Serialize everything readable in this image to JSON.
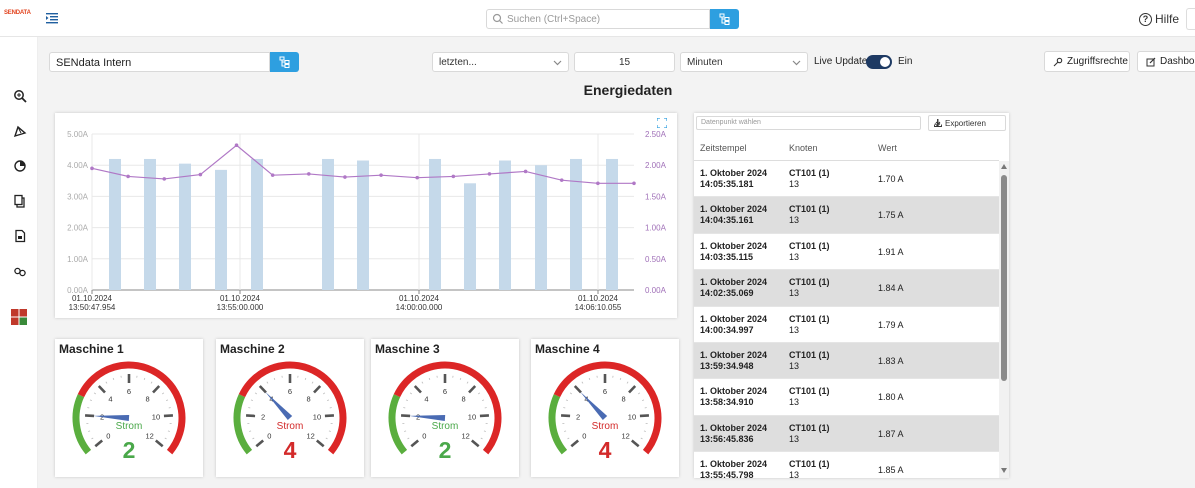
{
  "app": {
    "logo_text": "SENDATA"
  },
  "header": {
    "search_placeholder": "Suchen (Ctrl+Space)",
    "help_label": "Hilfe"
  },
  "sidebar": {
    "icons": [
      "zoom-search-icon",
      "rocket-icon",
      "pie-chart-icon",
      "copy-icon",
      "document-icon",
      "link-icon",
      "grid-app-icon"
    ]
  },
  "toolbar": {
    "node_value": "SENdata Intern",
    "range_select": "letzten...",
    "range_value": "15",
    "unit_select": "Minuten",
    "live_update_label": "Live Update",
    "live_update_state": "Ein",
    "access_button": "Zugriffsrechte",
    "dashboard_button": "Dashboard"
  },
  "page": {
    "title": "Energiedaten"
  },
  "chart_data": {
    "type": "bar",
    "title": "",
    "y_left": {
      "ticks": [
        "5.00A",
        "4.00A",
        "3.00A",
        "2.00A",
        "1.00A",
        "0.00A"
      ],
      "ylim": [
        0,
        5
      ]
    },
    "y_right": {
      "ticks": [
        "2.50A",
        "2.00A",
        "1.50A",
        "1.00A",
        "0.50A",
        "0.00A"
      ],
      "ylim": [
        0,
        2.5
      ]
    },
    "x_ticks": [
      {
        "date": "01.10.2024",
        "time": "13:50:47.954"
      },
      {
        "date": "01.10.2024",
        "time": "13:55:00.000"
      },
      {
        "date": "01.10.2024",
        "time": "14:00:00.000"
      },
      {
        "date": "01.10.2024",
        "time": "14:06:10.055"
      }
    ],
    "bar_values": [
      4.2,
      4.2,
      4.05,
      3.85,
      4.2,
      4.2,
      4.15,
      4.2,
      3.42,
      4.15,
      4.0,
      4.2,
      4.2
    ],
    "bar_color": "#c5d9ea",
    "line_values": [
      1.95,
      1.82,
      1.78,
      1.85,
      2.32,
      1.84,
      1.86,
      1.81,
      1.84,
      1.8,
      1.82,
      1.86,
      1.9,
      1.76,
      1.71,
      1.71
    ],
    "line_color": "#b078c6",
    "grid": true
  },
  "gauges": [
    {
      "title": "Maschine 1",
      "label": "Strom",
      "value": "2",
      "value_num": 2.0,
      "color": "#4aa84a",
      "ticks": [
        "0",
        "2",
        "4",
        "6",
        "8",
        "10",
        "12"
      ]
    },
    {
      "title": "Maschine 2",
      "label": "Strom",
      "value": "4",
      "value_num": 4.0,
      "color": "#d32a2a",
      "ticks": [
        "0",
        "2",
        "4",
        "6",
        "8",
        "10",
        "12"
      ]
    },
    {
      "title": "Maschine 3",
      "label": "Strom",
      "value": "2",
      "value_num": 2.0,
      "color": "#4aa84a",
      "ticks": [
        "0",
        "2",
        "4",
        "6",
        "8",
        "10",
        "12"
      ]
    },
    {
      "title": "Maschine 4",
      "label": "Strom",
      "value": "4",
      "value_num": 4.0,
      "color": "#d32a2a",
      "ticks": [
        "0",
        "2",
        "4",
        "6",
        "8",
        "10",
        "12"
      ]
    }
  ],
  "table": {
    "datapoint_placeholder": "Datenpunkt wählen",
    "export_label": "Exportieren",
    "headers": [
      "Zeitstempel",
      "Knoten",
      "Wert"
    ],
    "rows": [
      {
        "date": "1. Oktober 2024",
        "time": "14:05:35.181",
        "node": "CT101 (1)",
        "sub": "13",
        "value": "1.70 A"
      },
      {
        "date": "1. Oktober 2024",
        "time": "14:04:35.161",
        "node": "CT101 (1)",
        "sub": "13",
        "value": "1.75 A"
      },
      {
        "date": "1. Oktober 2024",
        "time": "14:03:35.115",
        "node": "CT101 (1)",
        "sub": "13",
        "value": "1.91 A"
      },
      {
        "date": "1. Oktober 2024",
        "time": "14:02:35.069",
        "node": "CT101 (1)",
        "sub": "13",
        "value": "1.84 A"
      },
      {
        "date": "1. Oktober 2024",
        "time": "14:00:34.997",
        "node": "CT101 (1)",
        "sub": "13",
        "value": "1.79 A"
      },
      {
        "date": "1. Oktober 2024",
        "time": "13:59:34.948",
        "node": "CT101 (1)",
        "sub": "13",
        "value": "1.83 A"
      },
      {
        "date": "1. Oktober 2024",
        "time": "13:58:34.910",
        "node": "CT101 (1)",
        "sub": "13",
        "value": "1.80 A"
      },
      {
        "date": "1. Oktober 2024",
        "time": "13:56:45.836",
        "node": "CT101 (1)",
        "sub": "13",
        "value": "1.87 A"
      },
      {
        "date": "1. Oktober 2024",
        "time": "13:55:45.798",
        "node": "CT101 (1)",
        "sub": "13",
        "value": "1.85 A"
      }
    ]
  },
  "colors": {
    "accent": "#2e9fe0",
    "toggle": "#1e3a63",
    "gauge_green": "#4aa84a",
    "gauge_red": "#d32a2a",
    "needle": "#4a6bb3"
  }
}
